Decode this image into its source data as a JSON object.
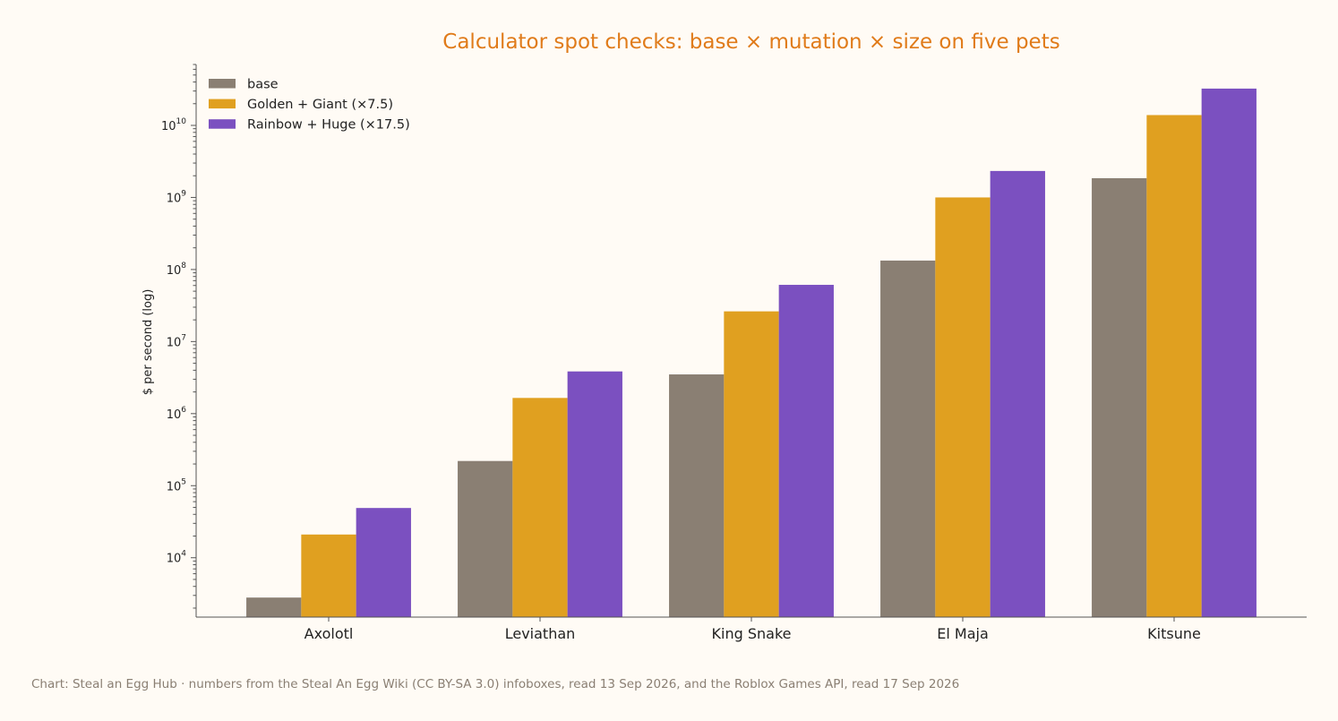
{
  "chart_data": {
    "type": "bar",
    "title": "Calculator spot checks: base × mutation × size on five pets",
    "xlabel": "",
    "ylabel": "$ per second (log)",
    "yscale": "log",
    "ylim": [
      1500,
      70000000000
    ],
    "yticks": [
      {
        "base": "10",
        "exp": "4",
        "value": 10000
      },
      {
        "base": "10",
        "exp": "5",
        "value": 100000
      },
      {
        "base": "10",
        "exp": "6",
        "value": 1000000
      },
      {
        "base": "10",
        "exp": "7",
        "value": 10000000
      },
      {
        "base": "10",
        "exp": "8",
        "value": 100000000
      },
      {
        "base": "10",
        "exp": "9",
        "value": 1000000000
      },
      {
        "base": "10",
        "exp": "10",
        "value": 10000000000
      }
    ],
    "categories": [
      "Axolotl",
      "Leviathan",
      "King Snake",
      "El Maja",
      "Kitsune"
    ],
    "series": [
      {
        "name": "base",
        "color": "#8a7f73",
        "values": [
          2800,
          220000,
          3500000,
          133000000,
          1850000000
        ]
      },
      {
        "name": "Golden + Giant (×7.5)",
        "color": "#e0a020",
        "values": [
          21000,
          1650000,
          26250000,
          1000000000,
          13900000000
        ]
      },
      {
        "name": "Rainbow + Huge (×17.5)",
        "color": "#7b50c0",
        "values": [
          49000,
          3850000,
          61250000,
          2330000000,
          32400000000
        ]
      }
    ],
    "legend_position": "top-left",
    "grid": false
  },
  "source_note": "Chart: Steal an Egg Hub · numbers from the Steal An Egg Wiki (CC BY-SA 3.0) infoboxes, read 13 Sep 2026, and the Roblox Games API, read 17 Sep 2026"
}
